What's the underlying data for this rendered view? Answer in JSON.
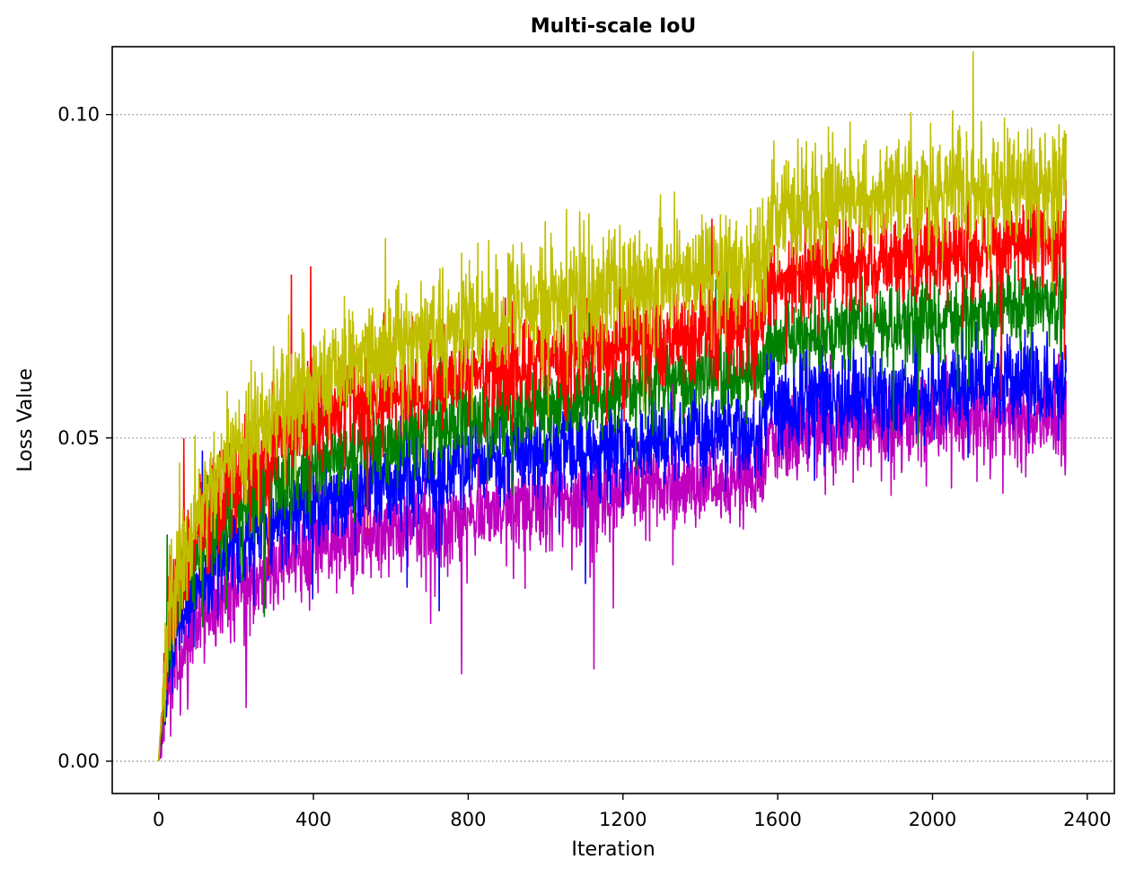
{
  "chart_data": {
    "type": "line",
    "title": "Multi-scale IoU",
    "xlabel": "Iteration",
    "ylabel": "Loss Value",
    "xlim": [
      -120,
      2470
    ],
    "ylim": [
      -0.005,
      0.1105
    ],
    "x_ticks": [
      0,
      400,
      800,
      1200,
      1600,
      2000,
      2400
    ],
    "x_tick_labels": [
      "0",
      "400",
      "800",
      "1200",
      "1600",
      "2000",
      "2400"
    ],
    "y_ticks": [
      0.0,
      0.05,
      0.1
    ],
    "y_tick_labels": [
      "0.00",
      "0.05",
      "0.10"
    ],
    "grid": "horizontal dotted",
    "legend": "none",
    "x_range": [
      0,
      2345
    ],
    "series_order": [
      "magenta",
      "blue",
      "green",
      "red",
      "yellow"
    ],
    "series": [
      {
        "color": "#bf00bf",
        "x": [
          0,
          25,
          50,
          100,
          200,
          300,
          400,
          600,
          800,
          1000,
          1200,
          1400,
          1560,
          1575,
          1700,
          1800,
          2000,
          2200,
          2345
        ],
        "values": [
          0.0,
          0.012,
          0.016,
          0.021,
          0.026,
          0.03,
          0.033,
          0.036,
          0.038,
          0.04,
          0.042,
          0.043,
          0.044,
          0.05,
          0.051,
          0.052,
          0.053,
          0.053,
          0.053
        ],
        "noise": 0.0035
      },
      {
        "color": "#0000ff",
        "x": [
          0,
          25,
          50,
          100,
          200,
          300,
          400,
          600,
          800,
          1000,
          1200,
          1400,
          1560,
          1575,
          1700,
          1800,
          2000,
          2200,
          2345
        ],
        "values": [
          0.0,
          0.016,
          0.021,
          0.028,
          0.033,
          0.037,
          0.04,
          0.043,
          0.046,
          0.048,
          0.049,
          0.05,
          0.051,
          0.055,
          0.056,
          0.056,
          0.057,
          0.058,
          0.059
        ],
        "noise": 0.0035
      },
      {
        "color": "#008000",
        "x": [
          0,
          25,
          50,
          100,
          200,
          300,
          400,
          600,
          800,
          1000,
          1200,
          1400,
          1560,
          1575,
          1700,
          1800,
          2000,
          2200,
          2345
        ],
        "values": [
          0.0,
          0.019,
          0.026,
          0.033,
          0.039,
          0.043,
          0.046,
          0.05,
          0.053,
          0.055,
          0.057,
          0.059,
          0.06,
          0.065,
          0.066,
          0.067,
          0.068,
          0.07,
          0.071
        ],
        "noise": 0.0032
      },
      {
        "color": "#ff0000",
        "x": [
          0,
          25,
          50,
          100,
          200,
          300,
          400,
          600,
          800,
          1000,
          1200,
          1400,
          1560,
          1575,
          1700,
          1800,
          2000,
          2200,
          2345
        ],
        "values": [
          0.0,
          0.021,
          0.028,
          0.036,
          0.044,
          0.049,
          0.053,
          0.057,
          0.06,
          0.062,
          0.064,
          0.066,
          0.068,
          0.074,
          0.075,
          0.076,
          0.078,
          0.08,
          0.081
        ],
        "noise": 0.0038
      },
      {
        "color": "#bfbf00",
        "x": [
          0,
          25,
          50,
          100,
          200,
          300,
          400,
          600,
          800,
          1000,
          1200,
          1400,
          1560,
          1575,
          1700,
          1800,
          2000,
          2200,
          2345
        ],
        "values": [
          0.0,
          0.022,
          0.03,
          0.039,
          0.048,
          0.054,
          0.058,
          0.064,
          0.068,
          0.071,
          0.073,
          0.075,
          0.077,
          0.084,
          0.086,
          0.087,
          0.088,
          0.089,
          0.09
        ],
        "noise": 0.0045
      }
    ]
  }
}
